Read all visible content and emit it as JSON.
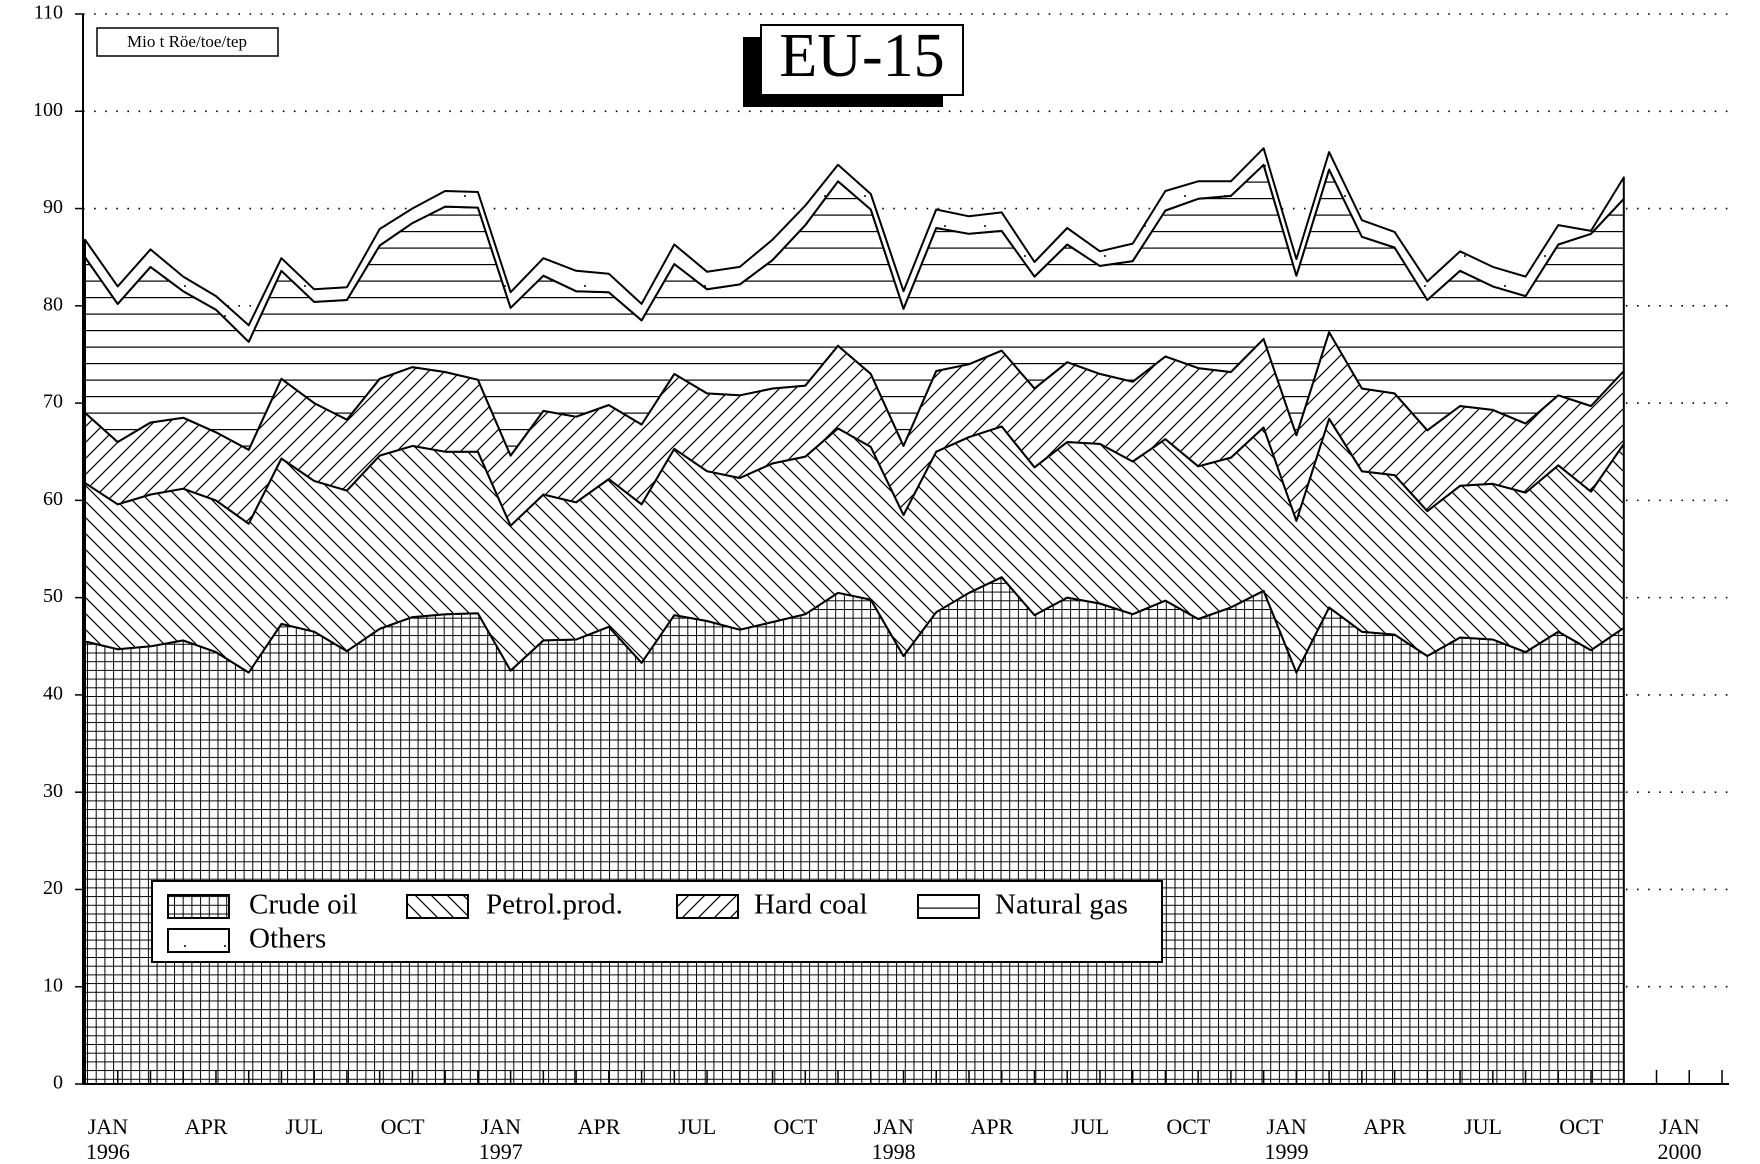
{
  "chart_data": {
    "type": "stacked_area",
    "title": "EU-15",
    "unit_label": "Mio t Röe/toe/tep",
    "categories": [
      "JAN\n1996",
      null,
      null,
      "APR",
      null,
      null,
      "JUL",
      null,
      null,
      "OCT",
      null,
      null,
      "JAN\n1997",
      null,
      null,
      "APR",
      null,
      null,
      "JUL",
      null,
      null,
      "OCT",
      null,
      null,
      "JAN\n1998",
      null,
      null,
      "APR",
      null,
      null,
      "JUL",
      null,
      null,
      "OCT",
      null,
      null,
      "JAN\n1999",
      null,
      null,
      "APR",
      null,
      null,
      "JUL",
      null,
      null,
      "OCT",
      null,
      null
    ],
    "extra_xtick_label": "JAN\n2000",
    "series": [
      {
        "name": "Crude oil",
        "color": "#000000",
        "values": [
          45.5,
          44.7,
          45,
          45.6,
          44.4,
          42.3,
          47.3,
          46.5,
          44.5,
          46.8,
          48,
          48.3,
          48.4,
          42.5,
          45.6,
          45.7,
          47,
          43.3,
          48.2,
          47.6,
          46.7,
          47.5,
          48.3,
          50.5,
          49.8,
          44,
          48.5,
          50.5,
          52.1,
          48.2,
          50,
          49.4,
          48.3,
          49.7,
          47.8,
          49,
          50.7,
          42.3,
          49,
          46.5,
          46.2,
          44,
          45.9,
          45.7,
          44.4,
          46.5,
          44.6,
          46.9
        ]
      },
      {
        "name": "Petrol.prod.",
        "color": "#000000",
        "values": [
          16.3,
          14.9,
          15.6,
          15.6,
          15.6,
          15.3,
          17.0,
          15.5,
          16.5,
          17.8,
          17.6,
          16.7,
          16.6,
          14.9,
          15.0,
          14.1,
          15.2,
          16.3,
          17.1,
          15.4,
          15.6,
          16.3,
          16.2,
          16.9,
          15.7,
          14.5,
          16.5,
          16.0,
          15.5,
          15.2,
          16.0,
          16.4,
          15.7,
          16.6,
          15.7,
          15.4,
          16.8,
          15.6,
          19.4,
          16.5,
          16.4,
          14.9,
          15.6,
          16.0,
          16.4,
          17.1,
          16.3,
          18.9
        ]
      },
      {
        "name": "Hard coal",
        "color": "#000000",
        "values": [
          7.2,
          6.4,
          7.4,
          7.3,
          7.0,
          7.6,
          8.2,
          8.0,
          7.3,
          7.9,
          8.1,
          8.2,
          7.4,
          7.2,
          8.6,
          8.8,
          7.6,
          8.2,
          7.7,
          8.0,
          8.5,
          7.7,
          7.3,
          8.5,
          7.5,
          7.1,
          8.3,
          7.5,
          7.8,
          8.1,
          8.2,
          7.2,
          8.2,
          8.5,
          10.1,
          8.8,
          9.1,
          8.8,
          8.9,
          8.5,
          8.4,
          8.3,
          8.2,
          7.6,
          7.1,
          7.2,
          8.8,
          7.5
        ]
      },
      {
        "name": "Natural gas",
        "color": "#000000",
        "values": [
          16.0,
          14.2,
          16.0,
          13.0,
          12.6,
          11.1,
          11.1,
          10.4,
          12.3,
          13.7,
          14.8,
          17.0,
          17.7,
          15.2,
          13.9,
          12.9,
          11.6,
          10.7,
          11.3,
          10.7,
          11.4,
          13.2,
          16.5,
          16.9,
          16.9,
          14.1,
          14.7,
          13.4,
          12.3,
          11.5,
          12.1,
          11.1,
          12.4,
          15.0,
          17.4,
          18.1,
          17.9,
          16.4,
          16.7,
          15.6,
          15.0,
          13.4,
          13.9,
          12.7,
          13.1,
          15.5,
          17.7,
          17.7
        ]
      },
      {
        "name": "Others",
        "color": "#000000",
        "values": [
          1.8,
          1.8,
          1.8,
          1.5,
          1.4,
          1.7,
          1.3,
          1.3,
          1.3,
          1.7,
          1.5,
          1.6,
          1.6,
          1.6,
          1.8,
          2.1,
          1.9,
          1.7,
          2.0,
          1.8,
          1.8,
          2.1,
          2.0,
          1.7,
          1.6,
          1.8,
          1.9,
          1.8,
          1.9,
          1.5,
          1.7,
          1.5,
          1.8,
          2.0,
          1.8,
          1.5,
          1.7,
          1.7,
          1.8,
          1.7,
          1.6,
          1.9,
          2.0,
          2.0,
          2.0,
          2.0,
          0.3,
          2.2
        ]
      }
    ],
    "ylim": [
      0,
      110
    ],
    "yticks": [
      0,
      10,
      20,
      30,
      40,
      50,
      60,
      70,
      80,
      90,
      100,
      110
    ],
    "grid": true
  }
}
